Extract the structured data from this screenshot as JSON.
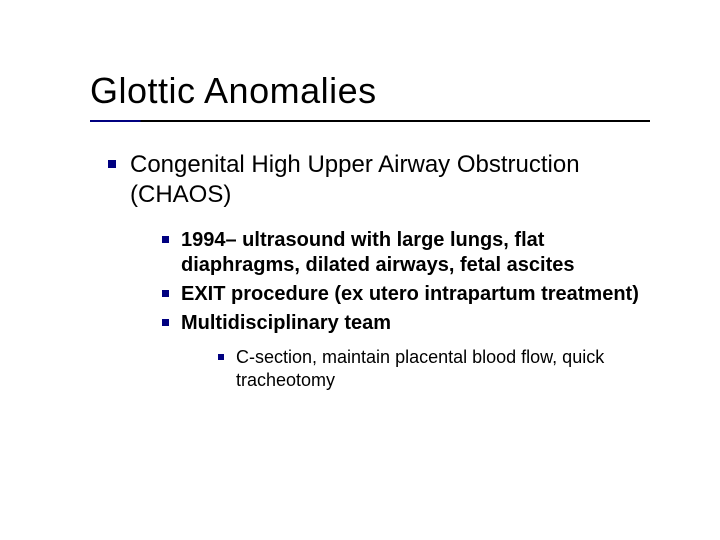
{
  "title": {
    "text": "Glottic Anomalies",
    "fontsize": 36,
    "color": "#000000",
    "underline_colors": [
      "#000080",
      "#000000"
    ],
    "underline_width": 560
  },
  "bullet_color": "#000080",
  "background_color": "#ffffff",
  "text_color": "#000000",
  "font_family": "Verdana",
  "level1": {
    "fontsize": 24,
    "weight": 400,
    "items": [
      {
        "text": "Congenital High Upper Airway Obstruction (CHAOS)"
      }
    ]
  },
  "level2": {
    "fontsize": 20,
    "weight": 700,
    "items": [
      {
        "text": "1994– ultrasound with large lungs, flat diaphragms, dilated airways, fetal ascites"
      },
      {
        "text": "EXIT procedure (ex utero intrapartum treatment)"
      },
      {
        "text": "Multidisciplinary team"
      }
    ]
  },
  "level3": {
    "fontsize": 18,
    "weight": 400,
    "items": [
      {
        "text": "C-section, maintain placental blood flow, quick tracheotomy"
      }
    ]
  }
}
